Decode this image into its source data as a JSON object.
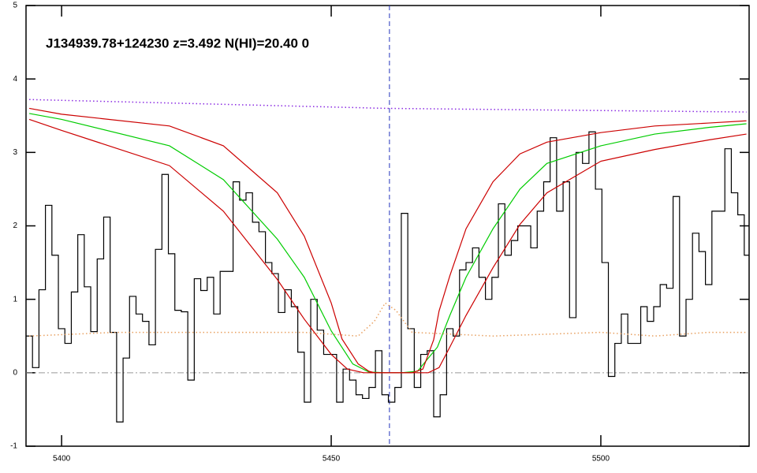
{
  "chart_data": {
    "type": "line",
    "title": "J134939.78+124230 z=3.492 N(HI)=20.40 0",
    "xlim": [
      5393.4,
      5527.5
    ],
    "ylim": [
      -1,
      5
    ],
    "xticks": [
      5400,
      5450,
      5500
    ],
    "yticks": [
      -1,
      0,
      1,
      2,
      3,
      4,
      5
    ],
    "vline": 5460.8,
    "hline": 0,
    "series": [
      {
        "color": "#000000",
        "style": "step",
        "x": [
          5394,
          5395.2,
          5396.4,
          5397.6,
          5398.8,
          5400,
          5401.2,
          5402.4,
          5403.6,
          5404.8,
          5406,
          5407.2,
          5408.4,
          5409.6,
          5410.8,
          5412,
          5413.2,
          5414.4,
          5415.6,
          5416.8,
          5418,
          5419.2,
          5420.4,
          5421.6,
          5422.8,
          5424,
          5425.2,
          5426.4,
          5427.6,
          5428.8,
          5430,
          5431.2,
          5432.4,
          5433.6,
          5434.8,
          5436,
          5437.2,
          5438.4,
          5439.6,
          5440.8,
          5442,
          5443.2,
          5444.4,
          5445.6,
          5446.8,
          5448,
          5449.2,
          5450.4,
          5451.6,
          5452.8,
          5454,
          5455.2,
          5456.4,
          5457.6,
          5458.8,
          5460,
          5461.2,
          5462.4,
          5463.6,
          5464.8,
          5466,
          5467.2,
          5468.4,
          5469.6,
          5470.8,
          5472,
          5473.2,
          5474.4,
          5475.6,
          5476.8,
          5478,
          5479.2,
          5480.4,
          5481.6,
          5482.8,
          5484,
          5485.2,
          5486.4,
          5487.6,
          5488.8,
          5490,
          5491.2,
          5492.4,
          5493.6,
          5494.8,
          5496,
          5497.2,
          5498.4,
          5499.6,
          5500.8,
          5502,
          5503.2,
          5504.4,
          5505.6,
          5506.8,
          5508,
          5509.2,
          5510.4,
          5511.6,
          5512.8,
          5514,
          5515.2,
          5516.4,
          5517.6,
          5518.8,
          5520,
          5521.2,
          5522.4,
          5523.6,
          5524.8,
          5526,
          5527.2
        ],
        "values": [
          0.5,
          0.07,
          1.13,
          2.28,
          1.6,
          0.6,
          0.4,
          1.1,
          1.88,
          1.17,
          0.56,
          1.55,
          2.12,
          0.55,
          -0.67,
          0.2,
          1.04,
          0.8,
          0.7,
          0.38,
          1.68,
          2.7,
          1.62,
          0.85,
          0.83,
          -0.1,
          1.28,
          1.12,
          1.3,
          0.8,
          1.38,
          1.38,
          2.6,
          2.35,
          2.45,
          2.05,
          1.92,
          1.5,
          1.35,
          0.82,
          1.13,
          0.9,
          0.28,
          -0.4,
          1.0,
          0.58,
          0.25,
          0.25,
          -0.4,
          0.05,
          -0.1,
          -0.3,
          -0.35,
          -0.2,
          0.3,
          -0.3,
          -0.4,
          -0.2,
          2.17,
          0.6,
          -0.2,
          0.25,
          0.3,
          -0.6,
          -0.3,
          0.6,
          0.5,
          1.4,
          1.5,
          1.7,
          1.3,
          1.0,
          1.3,
          2.3,
          1.6,
          1.8,
          2.0,
          2.0,
          1.7,
          2.2,
          2.6,
          3.2,
          2.2,
          2.6,
          0.75,
          3.0,
          2.85,
          3.28,
          2.5,
          1.5,
          -0.05,
          0.4,
          0.8,
          0.4,
          0.4,
          0.9,
          0.7,
          0.9,
          1.2,
          1.15,
          2.4,
          0.5,
          1.0,
          1.9,
          1.65,
          1.2,
          2.2,
          2.2,
          3.05,
          2.45,
          2.15,
          1.6
        ]
      },
      {
        "color": "#00cc00",
        "style": "solid",
        "x": [
          5394,
          5400,
          5420,
          5430,
          5440,
          5445,
          5450,
          5454,
          5457,
          5460,
          5463,
          5466,
          5469.7,
          5472,
          5475,
          5480,
          5485,
          5490,
          5500,
          5510,
          5520,
          5527
        ],
        "values": [
          3.53,
          3.45,
          3.09,
          2.63,
          1.82,
          1.3,
          0.57,
          0.12,
          0.01,
          0,
          0,
          0.02,
          0.35,
          0.78,
          1.3,
          1.96,
          2.5,
          2.85,
          3.09,
          3.25,
          3.34,
          3.39
        ]
      },
      {
        "color": "#cc0000",
        "style": "solid",
        "x": [
          5394,
          5400,
          5420,
          5430,
          5440,
          5445,
          5450,
          5452,
          5455,
          5457,
          5458,
          5465,
          5467,
          5469,
          5470,
          5472,
          5475,
          5480,
          5485,
          5490,
          5500,
          5510,
          5520,
          5527
        ],
        "values": [
          3.6,
          3.52,
          3.36,
          3.09,
          2.45,
          1.86,
          0.95,
          0.46,
          0.12,
          0.02,
          0,
          0,
          0.05,
          0.45,
          0.84,
          1.32,
          1.96,
          2.6,
          2.98,
          3.14,
          3.27,
          3.36,
          3.4,
          3.43
        ]
      },
      {
        "color": "#cc0000",
        "style": "solid",
        "x": [
          5394,
          5400,
          5420,
          5430,
          5440,
          5445,
          5450,
          5453,
          5456,
          5468,
          5470,
          5472,
          5475,
          5480,
          5485,
          5490,
          5500,
          5510,
          5520,
          5527
        ],
        "values": [
          3.45,
          3.3,
          2.82,
          2.2,
          1.27,
          0.73,
          0.25,
          0.05,
          0,
          0,
          0.07,
          0.35,
          0.78,
          1.43,
          2.02,
          2.45,
          2.88,
          3.04,
          3.17,
          3.25
        ]
      },
      {
        "color": "#8a2be2",
        "style": "dotted",
        "x": [
          5394,
          5460,
          5527
        ],
        "values": [
          3.72,
          3.6,
          3.55
        ]
      },
      {
        "color": "#e8a060",
        "style": "dotted",
        "x": [
          5394,
          5410,
          5430,
          5445,
          5455,
          5458,
          5460,
          5462,
          5465,
          5480,
          5500,
          5510,
          5520,
          5527
        ],
        "values": [
          0.5,
          0.55,
          0.55,
          0.55,
          0.5,
          0.7,
          0.95,
          0.85,
          0.55,
          0.5,
          0.55,
          0.5,
          0.55,
          0.55
        ]
      }
    ]
  }
}
